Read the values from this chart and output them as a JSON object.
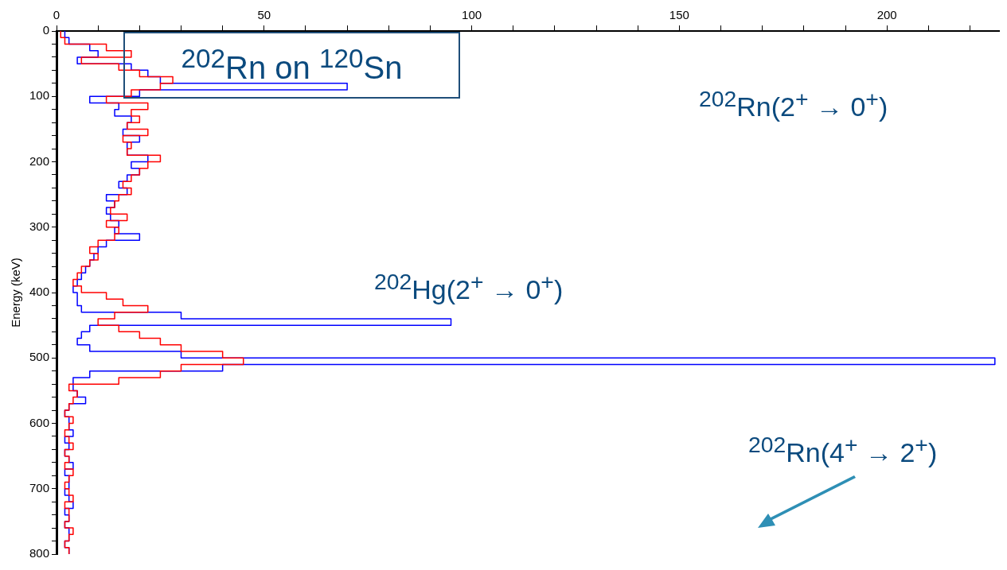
{
  "chart_data": {
    "type": "histogram",
    "orientation": "horizontal",
    "ylabel": "Energy (keV)",
    "annotations": [
      "$^{202}$Rn on $^{120}$Sn",
      "$^{202}$Rn(2$^{+}$ → 0$^{+}$)",
      "$^{202}$Hg(2$^{+}$ → 0$^{+}$)",
      "$^{202}$Rn(4$^{+}$ → 2$^{+}$)"
    ],
    "bins": [
      0,
      10,
      20,
      30,
      40,
      50,
      60,
      70,
      80,
      90,
      100,
      110,
      120,
      130,
      140,
      150,
      160,
      170,
      180,
      190,
      200,
      210,
      220,
      230,
      240,
      250,
      260,
      270,
      280,
      290,
      300,
      310,
      320,
      330,
      340,
      350,
      360,
      370,
      380,
      390,
      400,
      410,
      420,
      430,
      440,
      450,
      460,
      470,
      480,
      490,
      500,
      510,
      520,
      530,
      540,
      550,
      560,
      570,
      580,
      590,
      600,
      610,
      620,
      630,
      640,
      650,
      660,
      670,
      680,
      690,
      700,
      710,
      720,
      730,
      740,
      750,
      760,
      770,
      780,
      790,
      800
    ],
    "series": [
      {
        "color": "#ff0000",
        "values": [
          1,
          2,
          12,
          18,
          6,
          15,
          20,
          28,
          25,
          18,
          12,
          22,
          18,
          20,
          17,
          22,
          16,
          18,
          17,
          25,
          22,
          20,
          18,
          16,
          18,
          15,
          14,
          13,
          17,
          12,
          15,
          14,
          10,
          8,
          10,
          8,
          6,
          5,
          4,
          6,
          12,
          16,
          22,
          14,
          10,
          15,
          20,
          25,
          30,
          40,
          45,
          30,
          25,
          15,
          3,
          5,
          4,
          3,
          2,
          4,
          3,
          2,
          3,
          4,
          2,
          3,
          2,
          4,
          3,
          2,
          3,
          4,
          2,
          3,
          3,
          2,
          4,
          3,
          2,
          3
        ]
      },
      {
        "color": "#0000ff",
        "values": [
          2,
          3,
          8,
          10,
          5,
          18,
          22,
          25,
          70,
          20,
          8,
          15,
          14,
          18,
          17,
          16,
          20,
          17,
          17,
          22,
          18,
          20,
          17,
          15,
          17,
          12,
          14,
          12,
          13,
          15,
          14,
          20,
          12,
          10,
          9,
          8,
          7,
          6,
          5,
          4,
          5,
          5,
          6,
          30,
          95,
          8,
          6,
          5,
          8,
          30,
          226,
          40,
          8,
          4,
          4,
          5,
          7,
          3,
          2,
          3,
          3,
          4,
          2,
          3,
          2,
          3,
          4,
          2,
          3,
          3,
          2,
          3,
          4,
          2,
          3,
          2,
          3,
          3,
          2,
          3
        ]
      }
    ],
    "xlim": [
      0,
      227
    ],
    "xticks": [
      0,
      {
        "value": 10,
        "label": null
      },
      {
        "value": 20,
        "label": null
      },
      {
        "value": 30,
        "label": null
      },
      {
        "value": 40,
        "label": null
      },
      50,
      {
        "value": 60,
        "label": null
      },
      {
        "value": 70,
        "label": null
      },
      {
        "value": 80,
        "label": null
      },
      {
        "value": 90,
        "label": null
      },
      100,
      {
        "value": 110,
        "label": null
      },
      {
        "value": 120,
        "label": null
      },
      {
        "value": 130,
        "label": null
      },
      {
        "value": 140,
        "label": null
      },
      150,
      {
        "value": 160,
        "label": null
      },
      {
        "value": 170,
        "label": null
      },
      {
        "value": 180,
        "label": null
      },
      {
        "value": 190,
        "label": null
      },
      200,
      {
        "value": 210,
        "label": null
      },
      {
        "value": 220,
        "label": null
      }
    ],
    "ylim": [
      800,
      0
    ],
    "yticks": [
      0,
      {
        "value": 20,
        "label": null
      },
      {
        "value": 40,
        "label": null
      },
      {
        "value": 60,
        "label": null
      },
      {
        "value": 80,
        "label": null
      },
      100,
      {
        "value": 120,
        "label": null
      },
      {
        "value": 140,
        "label": null
      },
      {
        "value": 160,
        "label": null
      },
      {
        "value": 180,
        "label": null
      },
      200,
      {
        "value": 220,
        "label": null
      },
      {
        "value": 240,
        "label": null
      },
      {
        "value": 260,
        "label": null
      },
      {
        "value": 280,
        "label": null
      },
      300,
      {
        "value": 320,
        "label": null
      },
      {
        "value": 340,
        "label": null
      },
      {
        "value": 360,
        "label": null
      },
      {
        "value": 380,
        "label": null
      },
      400,
      {
        "value": 420,
        "label": null
      },
      {
        "value": 440,
        "label": null
      },
      {
        "value": 460,
        "label": null
      },
      {
        "value": 480,
        "label": null
      },
      500,
      {
        "value": 520,
        "label": null
      },
      {
        "value": 540,
        "label": null
      },
      {
        "value": 560,
        "label": null
      },
      {
        "value": 580,
        "label": null
      },
      600,
      {
        "value": 620,
        "label": null
      },
      {
        "value": 640,
        "label": null
      },
      {
        "value": 660,
        "label": null
      },
      {
        "value": 680,
        "label": null
      },
      700,
      {
        "value": 720,
        "label": null
      },
      {
        "value": 740,
        "label": null
      },
      {
        "value": 760,
        "label": null
      },
      {
        "value": 780,
        "label": null
      },
      800
    ],
    "grid": false,
    "legend": false
  }
}
